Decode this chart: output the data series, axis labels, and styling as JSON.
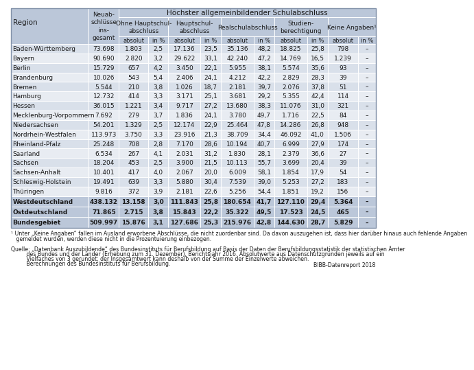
{
  "header1": "Höchster allgemeinbildender Schulabschluss",
  "sub_headers": [
    "Ohne Hauptschul-\nabschluss",
    "Hauptschul-\nabschluss",
    "Realschulabschluss",
    "Studien-\nberechtigung",
    "Keine Angaben¹"
  ],
  "neuab_header": "Neuab-\nschlüsse\nins-\ngesamt",
  "rows": [
    [
      "Baden-Württemberg",
      "73.698",
      "1.803",
      "2,5",
      "17.136",
      "23,5",
      "35.136",
      "48,2",
      "18.825",
      "25,8",
      "798",
      "–"
    ],
    [
      "Bayern",
      "90.690",
      "2.820",
      "3,2",
      "29.622",
      "33,1",
      "42.240",
      "47,2",
      "14.769",
      "16,5",
      "1.239",
      "–"
    ],
    [
      "Berlin",
      "15.729",
      "657",
      "4,2",
      "3.450",
      "22,1",
      "5.955",
      "38,1",
      "5.574",
      "35,6",
      "93",
      "–"
    ],
    [
      "Brandenburg",
      "10.026",
      "543",
      "5,4",
      "2.406",
      "24,1",
      "4.212",
      "42,2",
      "2.829",
      "28,3",
      "39",
      "–"
    ],
    [
      "Bremen",
      "5.544",
      "210",
      "3,8",
      "1.026",
      "18,7",
      "2.181",
      "39,7",
      "2.076",
      "37,8",
      "51",
      "–"
    ],
    [
      "Hamburg",
      "12.732",
      "414",
      "3,3",
      "3.171",
      "25,1",
      "3.681",
      "29,2",
      "5.355",
      "42,4",
      "114",
      "–"
    ],
    [
      "Hessen",
      "36.015",
      "1.221",
      "3,4",
      "9.717",
      "27,2",
      "13.680",
      "38,3",
      "11.076",
      "31,0",
      "321",
      "–"
    ],
    [
      "Mecklenburg-Vorpommern",
      "7.692",
      "279",
      "3,7",
      "1.836",
      "24,1",
      "3.780",
      "49,7",
      "1.716",
      "22,5",
      "84",
      "–"
    ],
    [
      "Niedersachsen",
      "54.201",
      "1.329",
      "2,5",
      "12.174",
      "22,9",
      "25.464",
      "47,8",
      "14.286",
      "26,8",
      "948",
      "–"
    ],
    [
      "Nordrhein-Westfalen",
      "113.973",
      "3.750",
      "3,3",
      "23.916",
      "21,3",
      "38.709",
      "34,4",
      "46.092",
      "41,0",
      "1.506",
      "–"
    ],
    [
      "Rheinland-Pfalz",
      "25.248",
      "708",
      "2,8",
      "7.170",
      "28,6",
      "10.194",
      "40,7",
      "6.999",
      "27,9",
      "174",
      "–"
    ],
    [
      "Saarland",
      "6.534",
      "267",
      "4,1",
      "2.031",
      "31,2",
      "1.830",
      "28,1",
      "2.379",
      "36,6",
      "27",
      "–"
    ],
    [
      "Sachsen",
      "18.204",
      "453",
      "2,5",
      "3.900",
      "21,5",
      "10.113",
      "55,7",
      "3.699",
      "20,4",
      "39",
      "–"
    ],
    [
      "Sachsen-Anhalt",
      "10.401",
      "417",
      "4,0",
      "2.067",
      "20,0",
      "6.009",
      "58,1",
      "1.854",
      "17,9",
      "54",
      "–"
    ],
    [
      "Schleswig-Holstein",
      "19.491",
      "639",
      "3,3",
      "5.880",
      "30,4",
      "7.539",
      "39,0",
      "5.253",
      "27,2",
      "183",
      "–"
    ],
    [
      "Thüringen",
      "9.816",
      "372",
      "3,9",
      "2.181",
      "22,6",
      "5.256",
      "54,4",
      "1.851",
      "19,2",
      "156",
      "–"
    ]
  ],
  "summary_rows": [
    [
      "Westdeutschland",
      "438.132",
      "13.158",
      "3,0",
      "111.843",
      "25,8",
      "180.654",
      "41,7",
      "127.110",
      "29,4",
      "5.364",
      "–"
    ],
    [
      "Ostdeutschland",
      "71.865",
      "2.715",
      "3,8",
      "15.843",
      "22,2",
      "35.322",
      "49,5",
      "17.523",
      "24,5",
      "465",
      "–"
    ],
    [
      "Bundesgebiet",
      "509.997",
      "15.876",
      "3,1",
      "127.686",
      "25,3",
      "215.976",
      "42,8",
      "144.630",
      "28,7",
      "5.829",
      "–"
    ]
  ],
  "footnote_line1": "¹ Unter „Keine Angaben“ fallen im Ausland erworbene Abschlüsse, die nicht zuordenbar sind. Da davon auszugehen ist, dass hier darüber hinaus auch fehlende Angaben",
  "footnote_line2": "   gemeldet wurden, werden diese nicht in die Prozentuierung einbezogen.",
  "source_line1": "Quelle: „Datenbank Auszubildende“ des Bundesinstituts für Berufsbildung auf Basis der Daten der Berufsbildungsstatistik der statistischen Ämter",
  "source_line2": "         des Bundes und der Länder (Erhebung zum 31. Dezember), Berichtsjahr 2016. Absolutwerte aus Datenschutzgründen jeweils auf ein",
  "source_line3": "         Vielfaches von 3 gerundet; der Insgesamtwert kann deshalb von der Summe der Einzelwerte abweichen.",
  "source_line4": "         Berechnungen des Bundesinstituts für Berufsbildung.",
  "bibb": "BIBB-Datenreport 2018",
  "bg_color_header": "#bbc7d9",
  "bg_color_row_even": "#d9e0ea",
  "bg_color_row_odd": "#e8ecf2",
  "bg_color_summary": "#bbc7d9",
  "text_color": "#1a1a1a",
  "border_color": "#ffffff"
}
